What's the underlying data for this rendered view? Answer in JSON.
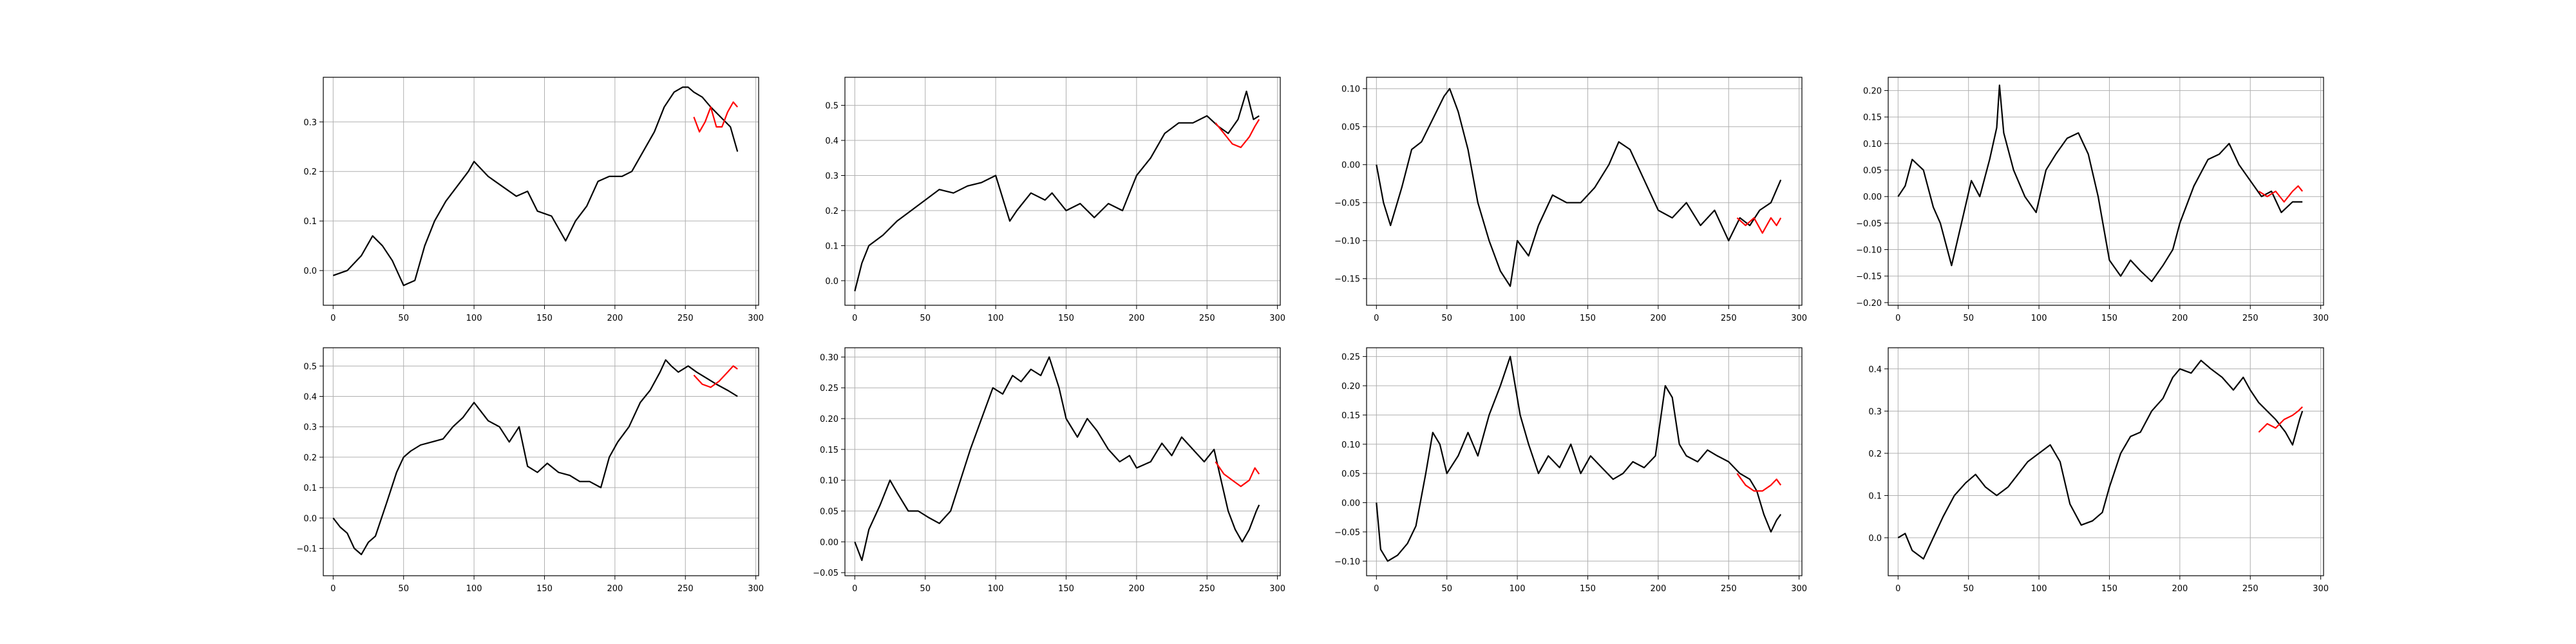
{
  "figure": {
    "rows": 2,
    "cols": 4
  },
  "colors": {
    "actual": "#000000",
    "forecast": "#ff0000",
    "grid": "#b0b0b0",
    "axis": "#000000"
  },
  "chart_data": [
    {
      "type": "line",
      "panel": 1,
      "grid": true,
      "xlim": [
        -7,
        302
      ],
      "ylim": [
        -0.07,
        0.39
      ],
      "xticks": [
        0,
        50,
        100,
        150,
        200,
        250,
        300
      ],
      "yticks": [
        0.0,
        0.1,
        0.2,
        0.3
      ],
      "ytick_labels": [
        "0.0",
        "0.1",
        "0.2",
        "0.3"
      ],
      "series": [
        {
          "role": "actual",
          "x": [
            0,
            10,
            20,
            28,
            35,
            42,
            50,
            58,
            65,
            72,
            80,
            88,
            96,
            100,
            110,
            120,
            130,
            138,
            145,
            155,
            165,
            172,
            180,
            188,
            196,
            205,
            212,
            220,
            228,
            235,
            242,
            248,
            252,
            256,
            262,
            268,
            275,
            282,
            287
          ],
          "y": [
            -0.01,
            0.0,
            0.03,
            0.07,
            0.05,
            0.02,
            -0.03,
            -0.02,
            0.05,
            0.1,
            0.14,
            0.17,
            0.2,
            0.22,
            0.19,
            0.17,
            0.15,
            0.16,
            0.12,
            0.11,
            0.06,
            0.1,
            0.13,
            0.18,
            0.19,
            0.19,
            0.2,
            0.24,
            0.28,
            0.33,
            0.36,
            0.37,
            0.37,
            0.36,
            0.35,
            0.33,
            0.31,
            0.29,
            0.24
          ]
        },
        {
          "role": "forecast",
          "x": [
            256,
            260,
            264,
            268,
            272,
            276,
            280,
            284,
            287
          ],
          "y": [
            0.31,
            0.28,
            0.3,
            0.33,
            0.29,
            0.29,
            0.32,
            0.34,
            0.33
          ]
        }
      ]
    },
    {
      "type": "line",
      "panel": 2,
      "grid": true,
      "xlim": [
        -7,
        302
      ],
      "ylim": [
        -0.07,
        0.58
      ],
      "xticks": [
        0,
        50,
        100,
        150,
        200,
        250,
        300
      ],
      "yticks": [
        0.0,
        0.1,
        0.2,
        0.3,
        0.4,
        0.5
      ],
      "ytick_labels": [
        "0.0",
        "0.1",
        "0.2",
        "0.3",
        "0.4",
        "0.5"
      ],
      "series": [
        {
          "role": "actual",
          "x": [
            0,
            5,
            10,
            20,
            30,
            40,
            50,
            60,
            70,
            80,
            90,
            100,
            110,
            115,
            125,
            135,
            140,
            150,
            160,
            170,
            180,
            190,
            200,
            210,
            220,
            230,
            240,
            250,
            258,
            265,
            272,
            278,
            283,
            287
          ],
          "y": [
            -0.03,
            0.05,
            0.1,
            0.13,
            0.17,
            0.2,
            0.23,
            0.26,
            0.25,
            0.27,
            0.28,
            0.3,
            0.17,
            0.2,
            0.25,
            0.23,
            0.25,
            0.2,
            0.22,
            0.18,
            0.22,
            0.2,
            0.3,
            0.35,
            0.42,
            0.45,
            0.45,
            0.47,
            0.44,
            0.42,
            0.46,
            0.54,
            0.46,
            0.47
          ]
        },
        {
          "role": "forecast",
          "x": [
            256,
            262,
            268,
            274,
            280,
            284,
            287
          ],
          "y": [
            0.45,
            0.42,
            0.39,
            0.38,
            0.41,
            0.44,
            0.46
          ]
        }
      ]
    },
    {
      "type": "line",
      "panel": 3,
      "grid": true,
      "xlim": [
        -7,
        302
      ],
      "ylim": [
        -0.185,
        0.115
      ],
      "xticks": [
        0,
        50,
        100,
        150,
        200,
        250,
        300
      ],
      "yticks": [
        -0.15,
        -0.1,
        -0.05,
        0.0,
        0.05,
        0.1
      ],
      "ytick_labels": [
        "−0.15",
        "−0.10",
        "−0.05",
        "0.00",
        "0.05",
        "0.10"
      ],
      "series": [
        {
          "role": "actual",
          "x": [
            0,
            5,
            10,
            18,
            25,
            32,
            40,
            48,
            52,
            58,
            65,
            72,
            80,
            88,
            95,
            100,
            108,
            115,
            125,
            135,
            145,
            155,
            165,
            172,
            180,
            190,
            200,
            210,
            220,
            230,
            240,
            250,
            258,
            265,
            272,
            280,
            287
          ],
          "y": [
            0.0,
            -0.05,
            -0.08,
            -0.03,
            0.02,
            0.03,
            0.06,
            0.09,
            0.1,
            0.07,
            0.02,
            -0.05,
            -0.1,
            -0.14,
            -0.16,
            -0.1,
            -0.12,
            -0.08,
            -0.04,
            -0.05,
            -0.05,
            -0.03,
            0.0,
            0.03,
            0.02,
            -0.02,
            -0.06,
            -0.07,
            -0.05,
            -0.08,
            -0.06,
            -0.1,
            -0.07,
            -0.08,
            -0.06,
            -0.05,
            -0.02
          ]
        },
        {
          "role": "forecast",
          "x": [
            256,
            262,
            268,
            274,
            280,
            284,
            287
          ],
          "y": [
            -0.07,
            -0.08,
            -0.07,
            -0.09,
            -0.07,
            -0.08,
            -0.07
          ]
        }
      ]
    },
    {
      "type": "line",
      "panel": 4,
      "grid": true,
      "xlim": [
        -7,
        302
      ],
      "ylim": [
        -0.205,
        0.225
      ],
      "xticks": [
        0,
        50,
        100,
        150,
        200,
        250,
        300
      ],
      "yticks": [
        -0.2,
        -0.15,
        -0.1,
        -0.05,
        0.0,
        0.05,
        0.1,
        0.15,
        0.2
      ],
      "ytick_labels": [
        "−0.20",
        "−0.15",
        "−0.10",
        "−0.05",
        "0.00",
        "0.05",
        "0.10",
        "0.15",
        "0.20"
      ],
      "series": [
        {
          "role": "actual",
          "x": [
            0,
            5,
            10,
            18,
            25,
            30,
            38,
            45,
            52,
            58,
            65,
            70,
            72,
            75,
            82,
            90,
            98,
            105,
            112,
            120,
            128,
            135,
            142,
            150,
            158,
            165,
            172,
            180,
            188,
            195,
            200,
            210,
            220,
            228,
            235,
            242,
            250,
            258,
            265,
            272,
            280,
            287
          ],
          "y": [
            0.0,
            0.02,
            0.07,
            0.05,
            -0.02,
            -0.05,
            -0.13,
            -0.05,
            0.03,
            0.0,
            0.07,
            0.13,
            0.21,
            0.12,
            0.05,
            0.0,
            -0.03,
            0.05,
            0.08,
            0.11,
            0.12,
            0.08,
            0.0,
            -0.12,
            -0.15,
            -0.12,
            -0.14,
            -0.16,
            -0.13,
            -0.1,
            -0.05,
            0.02,
            0.07,
            0.08,
            0.1,
            0.06,
            0.03,
            0.0,
            0.01,
            -0.03,
            -0.01,
            -0.01
          ]
        },
        {
          "role": "forecast",
          "x": [
            256,
            262,
            268,
            274,
            280,
            284,
            287
          ],
          "y": [
            0.01,
            0.0,
            0.01,
            -0.01,
            0.01,
            0.02,
            0.01
          ]
        }
      ]
    },
    {
      "type": "line",
      "panel": 5,
      "grid": true,
      "xlim": [
        -7,
        302
      ],
      "ylim": [
        -0.19,
        0.56
      ],
      "xticks": [
        0,
        50,
        100,
        150,
        200,
        250,
        300
      ],
      "yticks": [
        -0.1,
        0.0,
        0.1,
        0.2,
        0.3,
        0.4,
        0.5
      ],
      "ytick_labels": [
        "−0.1",
        "0.0",
        "0.1",
        "0.2",
        "0.3",
        "0.4",
        "0.5"
      ],
      "series": [
        {
          "role": "actual",
          "x": [
            0,
            5,
            10,
            15,
            20,
            25,
            30,
            38,
            45,
            50,
            55,
            62,
            70,
            78,
            85,
            92,
            100,
            105,
            110,
            118,
            125,
            132,
            138,
            145,
            152,
            160,
            168,
            175,
            182,
            190,
            196,
            202,
            210,
            218,
            225,
            232,
            236,
            240,
            245,
            252,
            258,
            265,
            272,
            280,
            287
          ],
          "y": [
            0.0,
            -0.03,
            -0.05,
            -0.1,
            -0.12,
            -0.08,
            -0.06,
            0.05,
            0.15,
            0.2,
            0.22,
            0.24,
            0.25,
            0.26,
            0.3,
            0.33,
            0.38,
            0.35,
            0.32,
            0.3,
            0.25,
            0.3,
            0.17,
            0.15,
            0.18,
            0.15,
            0.14,
            0.12,
            0.12,
            0.1,
            0.2,
            0.25,
            0.3,
            0.38,
            0.42,
            0.48,
            0.52,
            0.5,
            0.48,
            0.5,
            0.48,
            0.46,
            0.44,
            0.42,
            0.4
          ]
        },
        {
          "role": "forecast",
          "x": [
            256,
            262,
            268,
            274,
            280,
            284,
            287
          ],
          "y": [
            0.47,
            0.44,
            0.43,
            0.45,
            0.48,
            0.5,
            0.49
          ]
        }
      ]
    },
    {
      "type": "line",
      "panel": 6,
      "grid": true,
      "xlim": [
        -7,
        302
      ],
      "ylim": [
        -0.055,
        0.315
      ],
      "xticks": [
        0,
        50,
        100,
        150,
        200,
        250,
        300
      ],
      "yticks": [
        -0.05,
        0.0,
        0.05,
        0.1,
        0.15,
        0.2,
        0.25,
        0.3
      ],
      "ytick_labels": [
        "−0.05",
        "0.00",
        "0.05",
        "0.10",
        "0.15",
        "0.20",
        "0.25",
        "0.30"
      ],
      "series": [
        {
          "role": "actual",
          "x": [
            0,
            5,
            10,
            18,
            25,
            30,
            38,
            45,
            52,
            60,
            68,
            75,
            82,
            90,
            98,
            105,
            112,
            118,
            125,
            132,
            138,
            145,
            150,
            158,
            165,
            172,
            180,
            188,
            195,
            200,
            210,
            218,
            225,
            232,
            240,
            248,
            255,
            260,
            265,
            270,
            275,
            280,
            285,
            287
          ],
          "y": [
            0.0,
            -0.03,
            0.02,
            0.06,
            0.1,
            0.08,
            0.05,
            0.05,
            0.04,
            0.03,
            0.05,
            0.1,
            0.15,
            0.2,
            0.25,
            0.24,
            0.27,
            0.26,
            0.28,
            0.27,
            0.3,
            0.25,
            0.2,
            0.17,
            0.2,
            0.18,
            0.15,
            0.13,
            0.14,
            0.12,
            0.13,
            0.16,
            0.14,
            0.17,
            0.15,
            0.13,
            0.15,
            0.1,
            0.05,
            0.02,
            0.0,
            0.02,
            0.05,
            0.06
          ]
        },
        {
          "role": "forecast",
          "x": [
            256,
            262,
            268,
            274,
            280,
            284,
            287
          ],
          "y": [
            0.13,
            0.11,
            0.1,
            0.09,
            0.1,
            0.12,
            0.11
          ]
        }
      ]
    },
    {
      "type": "line",
      "panel": 7,
      "grid": true,
      "xlim": [
        -7,
        302
      ],
      "ylim": [
        -0.125,
        0.265
      ],
      "xticks": [
        0,
        50,
        100,
        150,
        200,
        250,
        300
      ],
      "yticks": [
        -0.1,
        -0.05,
        0.0,
        0.05,
        0.1,
        0.15,
        0.2,
        0.25
      ],
      "ytick_labels": [
        "−0.10",
        "−0.05",
        "0.00",
        "0.05",
        "0.10",
        "0.15",
        "0.20",
        "0.25"
      ],
      "series": [
        {
          "role": "actual",
          "x": [
            0,
            3,
            8,
            15,
            22,
            28,
            35,
            40,
            45,
            50,
            58,
            65,
            72,
            80,
            88,
            95,
            102,
            108,
            115,
            122,
            130,
            138,
            145,
            152,
            160,
            168,
            175,
            182,
            190,
            198,
            205,
            210,
            215,
            220,
            228,
            235,
            242,
            250,
            258,
            265,
            270,
            275,
            280,
            284,
            287
          ],
          "y": [
            0.0,
            -0.08,
            -0.1,
            -0.09,
            -0.07,
            -0.04,
            0.05,
            0.12,
            0.1,
            0.05,
            0.08,
            0.12,
            0.08,
            0.15,
            0.2,
            0.25,
            0.15,
            0.1,
            0.05,
            0.08,
            0.06,
            0.1,
            0.05,
            0.08,
            0.06,
            0.04,
            0.05,
            0.07,
            0.06,
            0.08,
            0.2,
            0.18,
            0.1,
            0.08,
            0.07,
            0.09,
            0.08,
            0.07,
            0.05,
            0.04,
            0.02,
            -0.02,
            -0.05,
            -0.03,
            -0.02
          ]
        },
        {
          "role": "forecast",
          "x": [
            256,
            262,
            268,
            274,
            280,
            284,
            287
          ],
          "y": [
            0.05,
            0.03,
            0.02,
            0.02,
            0.03,
            0.04,
            0.03
          ]
        }
      ]
    },
    {
      "type": "line",
      "panel": 8,
      "grid": true,
      "xlim": [
        -7,
        302
      ],
      "ylim": [
        -0.09,
        0.45
      ],
      "xticks": [
        0,
        50,
        100,
        150,
        200,
        250,
        300
      ],
      "yticks": [
        0.0,
        0.1,
        0.2,
        0.3,
        0.4
      ],
      "ytick_labels": [
        "0.0",
        "0.1",
        "0.2",
        "0.3",
        "0.4"
      ],
      "series": [
        {
          "role": "actual",
          "x": [
            0,
            5,
            10,
            18,
            25,
            32,
            40,
            48,
            55,
            62,
            70,
            78,
            85,
            92,
            100,
            108,
            115,
            122,
            130,
            138,
            145,
            150,
            158,
            165,
            172,
            180,
            188,
            195,
            200,
            208,
            215,
            222,
            230,
            238,
            245,
            250,
            256,
            262,
            268,
            275,
            280,
            285,
            287
          ],
          "y": [
            0.0,
            0.01,
            -0.03,
            -0.05,
            0.0,
            0.05,
            0.1,
            0.13,
            0.15,
            0.12,
            0.1,
            0.12,
            0.15,
            0.18,
            0.2,
            0.22,
            0.18,
            0.08,
            0.03,
            0.04,
            0.06,
            0.12,
            0.2,
            0.24,
            0.25,
            0.3,
            0.33,
            0.38,
            0.4,
            0.39,
            0.42,
            0.4,
            0.38,
            0.35,
            0.38,
            0.35,
            0.32,
            0.3,
            0.28,
            0.25,
            0.22,
            0.28,
            0.3
          ]
        },
        {
          "role": "forecast",
          "x": [
            256,
            262,
            268,
            274,
            280,
            284,
            287
          ],
          "y": [
            0.25,
            0.27,
            0.26,
            0.28,
            0.29,
            0.3,
            0.31
          ]
        }
      ]
    }
  ]
}
